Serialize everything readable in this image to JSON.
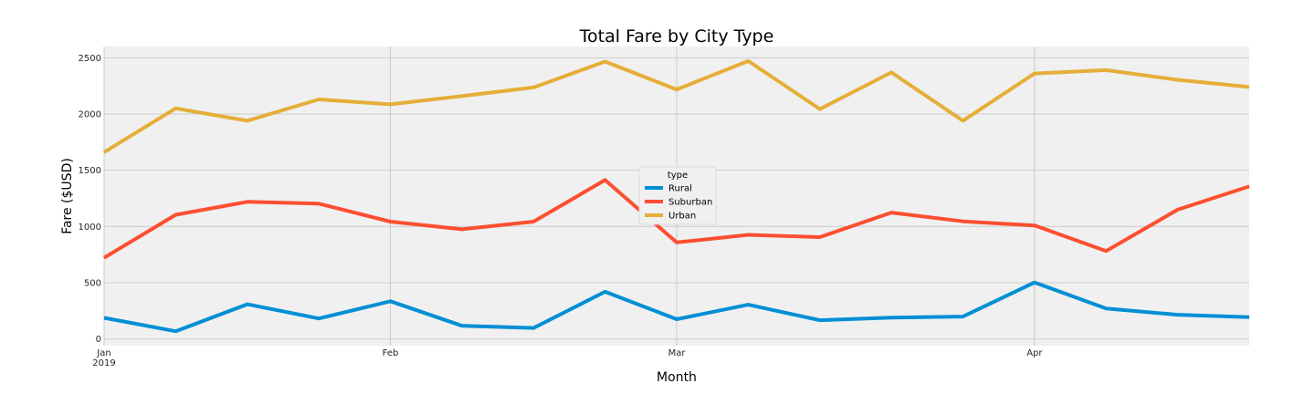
{
  "chart_data": {
    "type": "line",
    "title": "Total Fare by City Type",
    "xlabel": "Month",
    "ylabel": "Fare ($USD)",
    "x": [
      "2019-01-06",
      "2019-01-13",
      "2019-01-20",
      "2019-01-27",
      "2019-02-03",
      "2019-02-10",
      "2019-02-17",
      "2019-02-24",
      "2019-03-03",
      "2019-03-10",
      "2019-03-17",
      "2019-03-24",
      "2019-03-31",
      "2019-04-07",
      "2019-04-14",
      "2019-04-21",
      "2019-04-28"
    ],
    "x_range": [
      "2019-01-06",
      "2019-04-28"
    ],
    "x_ticks": [
      {
        "date": "2019-01-06",
        "label": "Jan",
        "sublabel": "2019"
      },
      {
        "date": "2019-02-03",
        "label": "Feb",
        "sublabel": ""
      },
      {
        "date": "2019-03-03",
        "label": "Mar",
        "sublabel": ""
      },
      {
        "date": "2019-04-07",
        "label": "Apr",
        "sublabel": ""
      }
    ],
    "ylim": [
      -60,
      2600
    ],
    "y_ticks": [
      0,
      500,
      1000,
      1500,
      2000,
      2500
    ],
    "grid": true,
    "background_color": "#f0f0f0",
    "grid_color": "#cbcbcb",
    "legend": {
      "title": "type",
      "placement": "center"
    },
    "series": [
      {
        "name": "Rural",
        "color": "#008fd5",
        "values": [
          187,
          68,
          308,
          182,
          335,
          117,
          97,
          419,
          175,
          304,
          166,
          190,
          199,
          502,
          270,
          215,
          193
        ]
      },
      {
        "name": "Suburban",
        "color": "#fc4f30",
        "values": [
          722,
          1104,
          1219,
          1203,
          1043,
          975,
          1043,
          1413,
          858,
          925,
          905,
          1123,
          1045,
          1009,
          782,
          1149,
          1356
        ]
      },
      {
        "name": "Urban",
        "color": "#e5ae38",
        "values": [
          1660,
          2050,
          1940,
          2130,
          2086,
          2160,
          2236,
          2466,
          2218,
          2471,
          2044,
          2370,
          1940,
          2360,
          2390,
          2304,
          2240
        ]
      }
    ]
  }
}
